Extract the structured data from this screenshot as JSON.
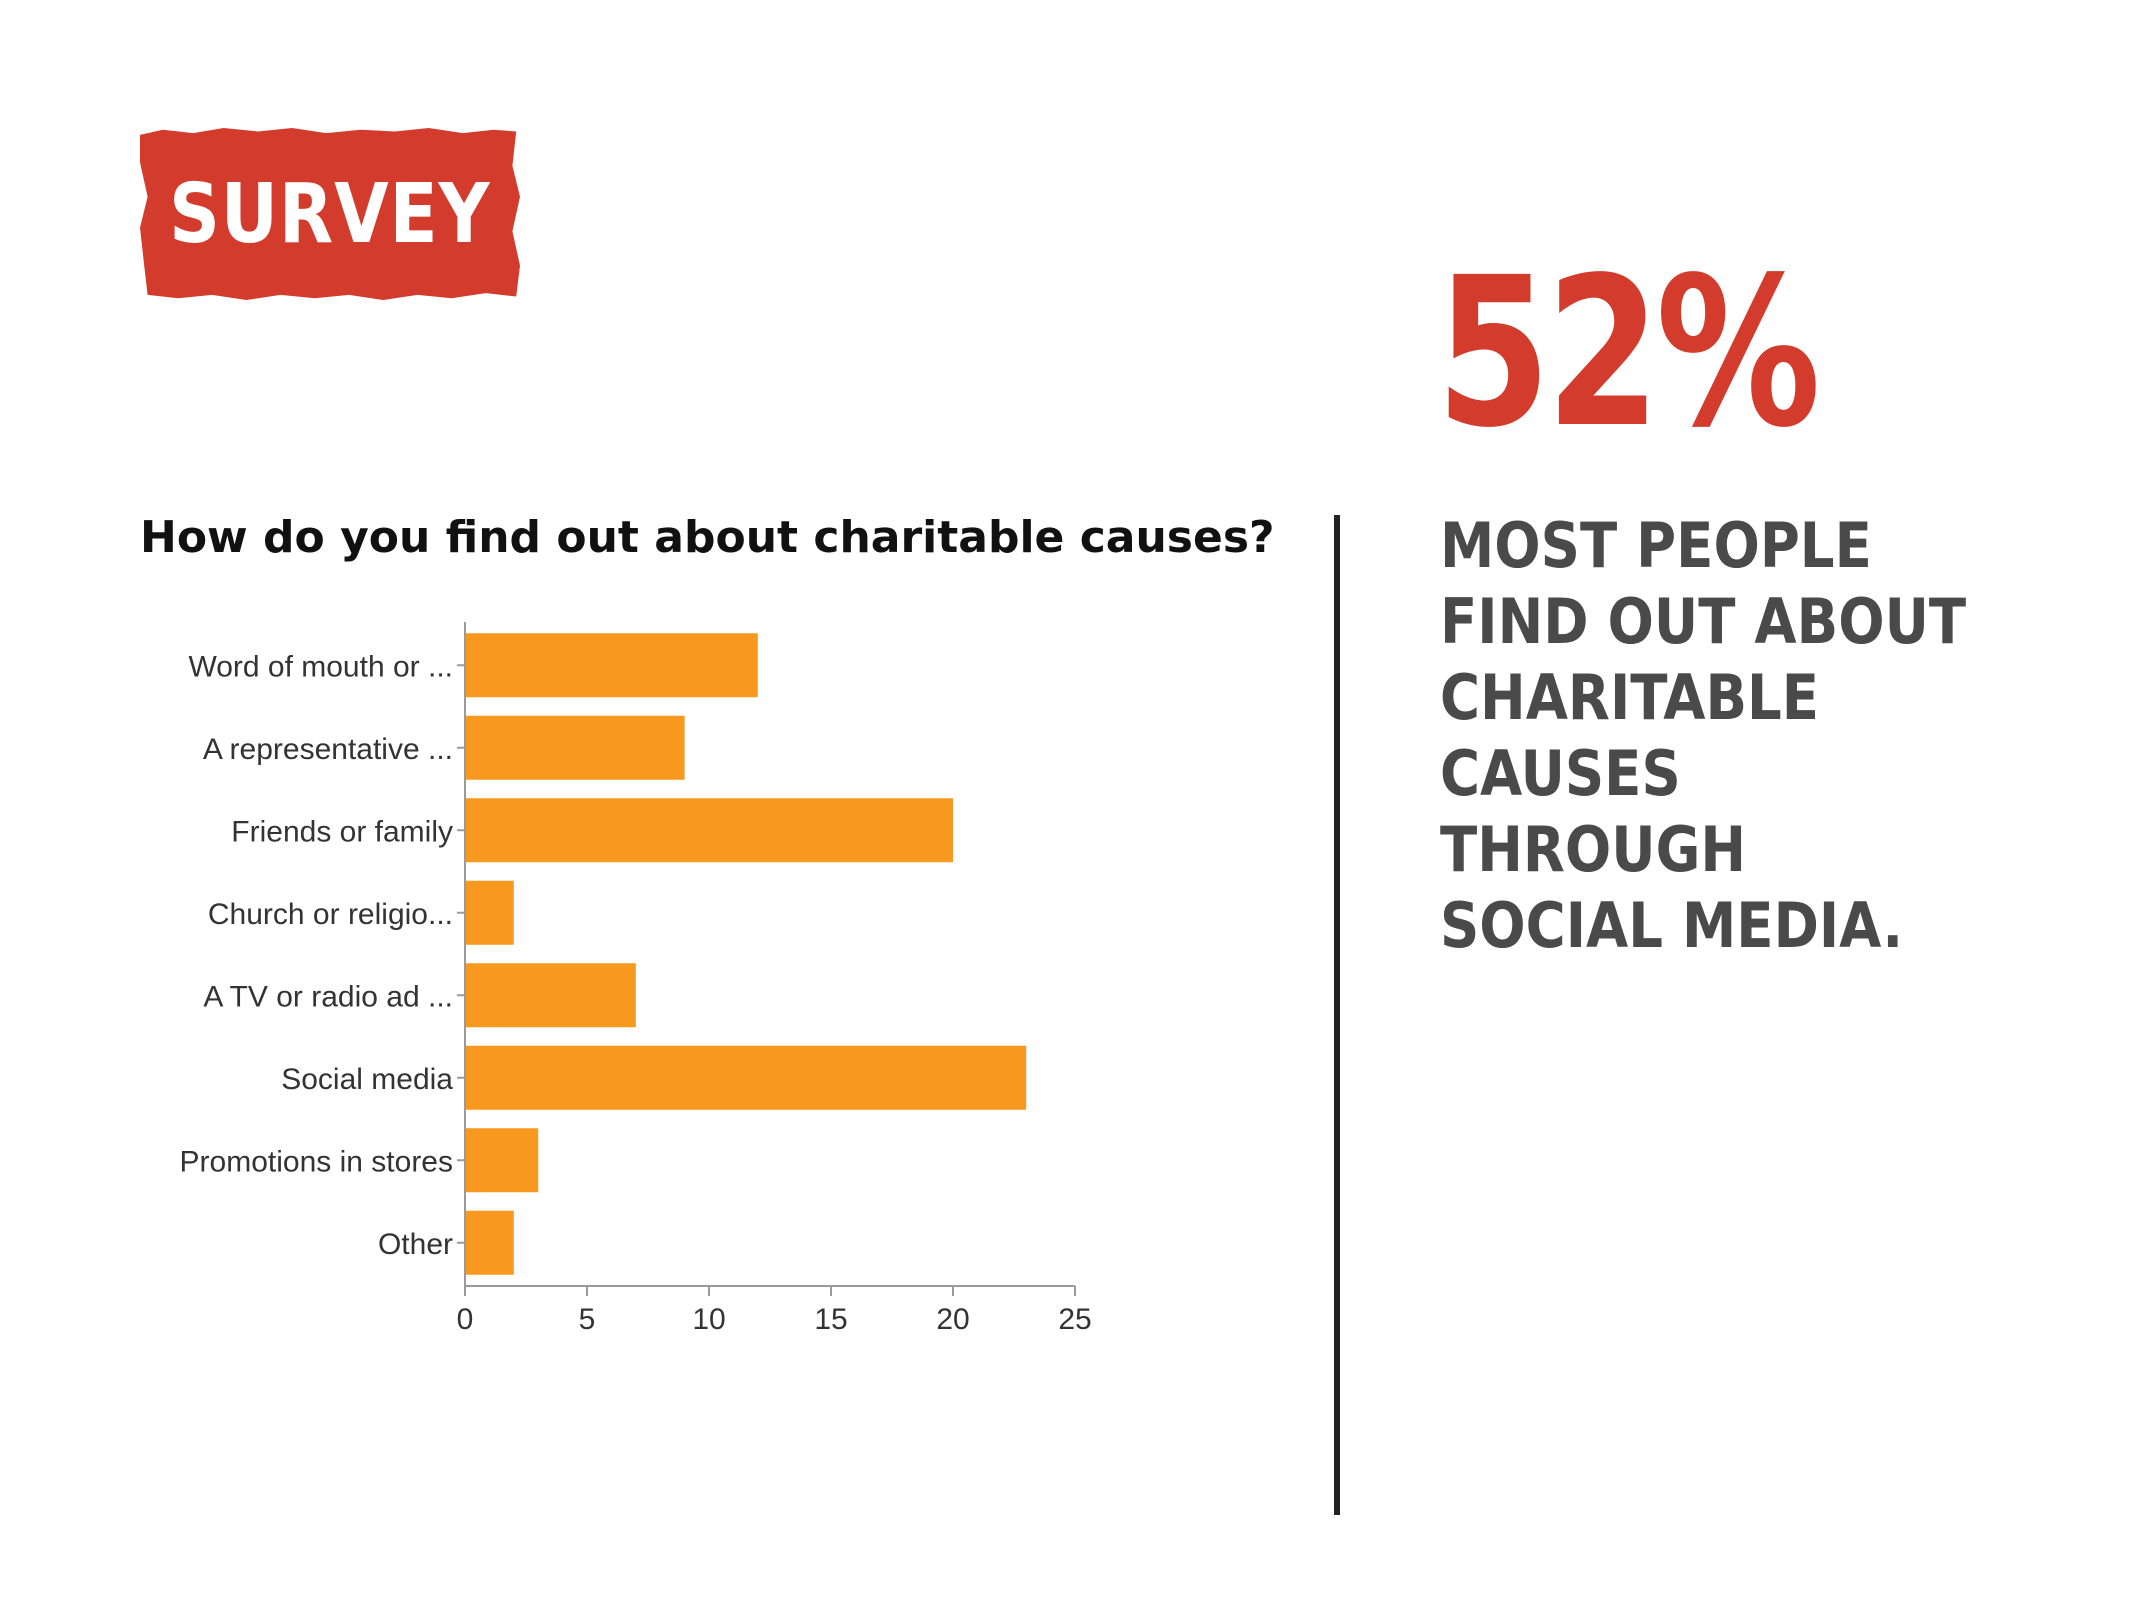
{
  "badge": {
    "label": "SURVEY",
    "color": "#d33c2c"
  },
  "stat": {
    "value": "52%",
    "color": "#d33c2c"
  },
  "headline": {
    "text": "MOST PEOPLE FIND OUT ABOUT CHARITABLE CAUSES THROUGH SOCIAL MEDIA."
  },
  "chart_data": {
    "type": "bar",
    "orientation": "horizontal",
    "title": "How do you find out about charitable causes?",
    "categories": [
      "Word of mouth or ...",
      "A representative ...",
      "Friends or family",
      "Church or religio...",
      "A TV or radio ad ...",
      "Social media",
      "Promotions in stores",
      "Other"
    ],
    "values": [
      12,
      9,
      20,
      2,
      7,
      23,
      3,
      2
    ],
    "xlim": [
      0,
      25
    ],
    "xticks": [
      "0",
      "5",
      "10",
      "15",
      "20",
      "25"
    ],
    "bar_color": "#f7991f",
    "grid": false,
    "legend": "none"
  }
}
